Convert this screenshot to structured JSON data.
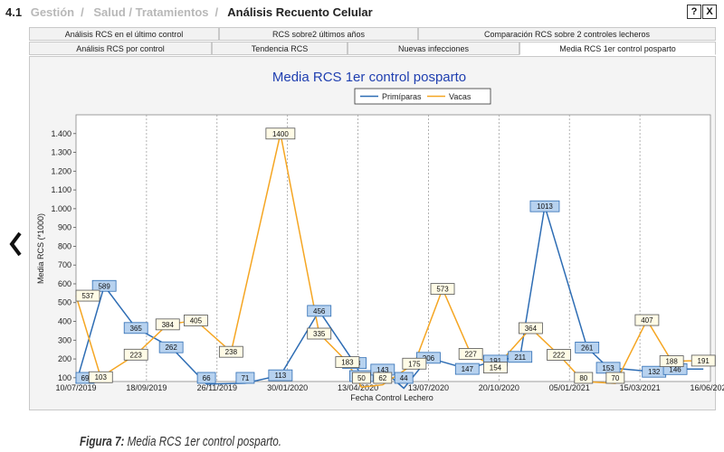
{
  "breadcrumb": {
    "section_number": "4.1",
    "items": [
      "Gestión",
      "Salud / Tratamientos"
    ],
    "current": "Análisis Recuento Celular"
  },
  "window_buttons": {
    "help": "?",
    "close": "X"
  },
  "tabs_row1": [
    {
      "label": "Análisis RCS en el último control"
    },
    {
      "label": "RCS sobre2 últimos años"
    },
    {
      "label": "Comparación RCS sobre 2 controles lecheros"
    }
  ],
  "tabs_row2": [
    {
      "label": "Análisis RCS por control"
    },
    {
      "label": "Tendencia RCS"
    },
    {
      "label": "Nuevas infecciones"
    },
    {
      "label": "Media RCS 1er control posparto",
      "active": true
    }
  ],
  "chart_data": {
    "type": "line",
    "title": "Media RCS 1er control posparto",
    "xlabel": "Fecha Control Lechero",
    "ylabel": "Media RCS (*1000)",
    "ylim": [
      80,
      1500
    ],
    "y_ticks": [
      "100",
      "200",
      "300",
      "400",
      "500",
      "600",
      "700",
      "800",
      "900",
      "1.000",
      "1.100",
      "1.200",
      "1.300",
      "1.400"
    ],
    "y_tick_values": [
      100,
      200,
      300,
      400,
      500,
      600,
      700,
      800,
      900,
      1000,
      1100,
      1200,
      1300,
      1400
    ],
    "x_ticks": [
      "10/07/2019",
      "18/09/2019",
      "26/11/2019",
      "30/01/2020",
      "13/04/2020",
      "13/07/2020",
      "20/10/2020",
      "05/01/2021",
      "15/03/2021",
      "16/06/2021"
    ],
    "grid": "vertical dotted",
    "legend_position": "top-center",
    "colors": {
      "Primíparas": "#2e6db4",
      "Vacas": "#f5a623"
    },
    "series": [
      {
        "name": "Primíparas",
        "x": [
          0.0,
          0.4,
          0.85,
          1.35,
          1.85,
          2.4,
          2.9,
          3.45,
          3.95,
          4.05,
          4.35,
          4.65,
          5.0,
          5.55,
          5.95,
          6.3,
          6.65,
          7.25,
          7.55,
          8.2,
          8.5,
          8.9
        ],
        "values": [
          69,
          589,
          365,
          262,
          66,
          71,
          113,
          456,
          178,
          109,
          143,
          44,
          206,
          147,
          191,
          211,
          1013,
          261,
          153,
          132,
          146,
          146
        ],
        "labels": [
          "69",
          "589",
          "365",
          "262",
          "66",
          "71",
          "113",
          "456",
          "178",
          "109",
          "143",
          "44",
          "206",
          "147",
          "191",
          "211",
          "1013",
          "261",
          "153",
          "132",
          "146",
          ""
        ]
      },
      {
        "name": "Vacas",
        "x": [
          0.0,
          0.35,
          0.85,
          1.3,
          1.7,
          2.2,
          2.9,
          3.45,
          3.85,
          4.05,
          4.35,
          4.8,
          5.2,
          5.6,
          5.95,
          6.45,
          6.85,
          7.2,
          7.65,
          8.1,
          8.45,
          8.9
        ],
        "values": [
          537,
          103,
          223,
          384,
          405,
          238,
          1400,
          335,
          183,
          50,
          62,
          175,
          573,
          227,
          154,
          364,
          222,
          80,
          70,
          407,
          188,
          191
        ],
        "labels": [
          "537",
          "103",
          "223",
          "384",
          "405",
          "238",
          "1400",
          "335",
          "183",
          "50",
          "62",
          "175",
          "573",
          "227",
          "154",
          "364",
          "222",
          "80",
          "70",
          "407",
          "188",
          "191"
        ]
      }
    ]
  },
  "caption": {
    "prefix": "Figura 7:",
    "text": " Media RCS 1er control posparto."
  }
}
